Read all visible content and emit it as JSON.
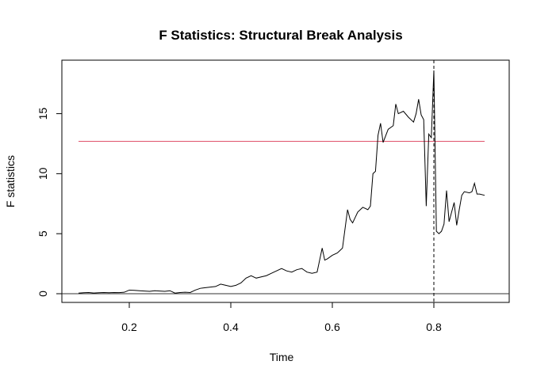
{
  "chart_data": {
    "type": "line",
    "title": "F Statistics: Structural Break Analysis",
    "xlabel": "Time",
    "ylabel": "F statistics",
    "xlim": [
      0.1,
      0.9
    ],
    "ylim": [
      0,
      18.6
    ],
    "x_ticks": [
      0.2,
      0.4,
      0.6,
      0.8
    ],
    "x_tick_labels": [
      "0.2",
      "0.4",
      "0.6",
      "0.8"
    ],
    "y_ticks": [
      0,
      5,
      10,
      15
    ],
    "y_tick_labels": [
      "0",
      "5",
      "10",
      "15"
    ],
    "grid": false,
    "critical_value": 12.7,
    "critical_color": "#DF536B",
    "break_point": 0.8,
    "zero_line": 0,
    "series": [
      {
        "color": "#000000",
        "x": [
          0.1,
          0.11,
          0.12,
          0.13,
          0.14,
          0.15,
          0.16,
          0.17,
          0.18,
          0.19,
          0.2,
          0.21,
          0.22,
          0.23,
          0.24,
          0.25,
          0.26,
          0.27,
          0.28,
          0.29,
          0.3,
          0.31,
          0.32,
          0.33,
          0.34,
          0.35,
          0.36,
          0.37,
          0.38,
          0.39,
          0.4,
          0.41,
          0.42,
          0.43,
          0.44,
          0.45,
          0.46,
          0.47,
          0.48,
          0.49,
          0.5,
          0.51,
          0.52,
          0.53,
          0.54,
          0.55,
          0.56,
          0.57,
          0.58,
          0.585,
          0.59,
          0.6,
          0.61,
          0.62,
          0.63,
          0.635,
          0.64,
          0.65,
          0.66,
          0.67,
          0.675,
          0.68,
          0.685,
          0.69,
          0.695,
          0.7,
          0.71,
          0.72,
          0.725,
          0.73,
          0.74,
          0.75,
          0.76,
          0.765,
          0.77,
          0.775,
          0.78,
          0.785,
          0.79,
          0.795,
          0.8,
          0.805,
          0.81,
          0.815,
          0.82,
          0.825,
          0.83,
          0.835,
          0.84,
          0.845,
          0.85,
          0.855,
          0.86,
          0.87,
          0.875,
          0.88,
          0.885,
          0.89,
          0.9
        ],
        "values": [
          0.05,
          0.08,
          0.1,
          0.06,
          0.08,
          0.1,
          0.08,
          0.1,
          0.09,
          0.12,
          0.3,
          0.28,
          0.25,
          0.22,
          0.2,
          0.25,
          0.22,
          0.2,
          0.25,
          0.05,
          0.1,
          0.12,
          0.1,
          0.3,
          0.45,
          0.5,
          0.55,
          0.6,
          0.8,
          0.7,
          0.6,
          0.7,
          0.9,
          1.3,
          1.5,
          1.3,
          1.4,
          1.5,
          1.7,
          1.9,
          2.1,
          1.9,
          1.8,
          2.0,
          2.1,
          1.8,
          1.7,
          1.8,
          3.8,
          2.8,
          2.9,
          3.2,
          3.4,
          3.8,
          7.0,
          6.2,
          5.9,
          6.8,
          7.2,
          7.0,
          7.3,
          10.0,
          10.2,
          13.2,
          14.2,
          12.6,
          13.7,
          14.0,
          15.8,
          15.0,
          15.2,
          14.7,
          14.3,
          15.0,
          16.2,
          14.9,
          14.5,
          7.3,
          13.3,
          13.0,
          18.6,
          5.2,
          5.0,
          5.2,
          5.8,
          8.6,
          6.0,
          6.8,
          7.6,
          5.7,
          7.0,
          8.2,
          8.5,
          8.4,
          8.5,
          9.2,
          8.3,
          8.3,
          8.2
        ]
      }
    ]
  }
}
